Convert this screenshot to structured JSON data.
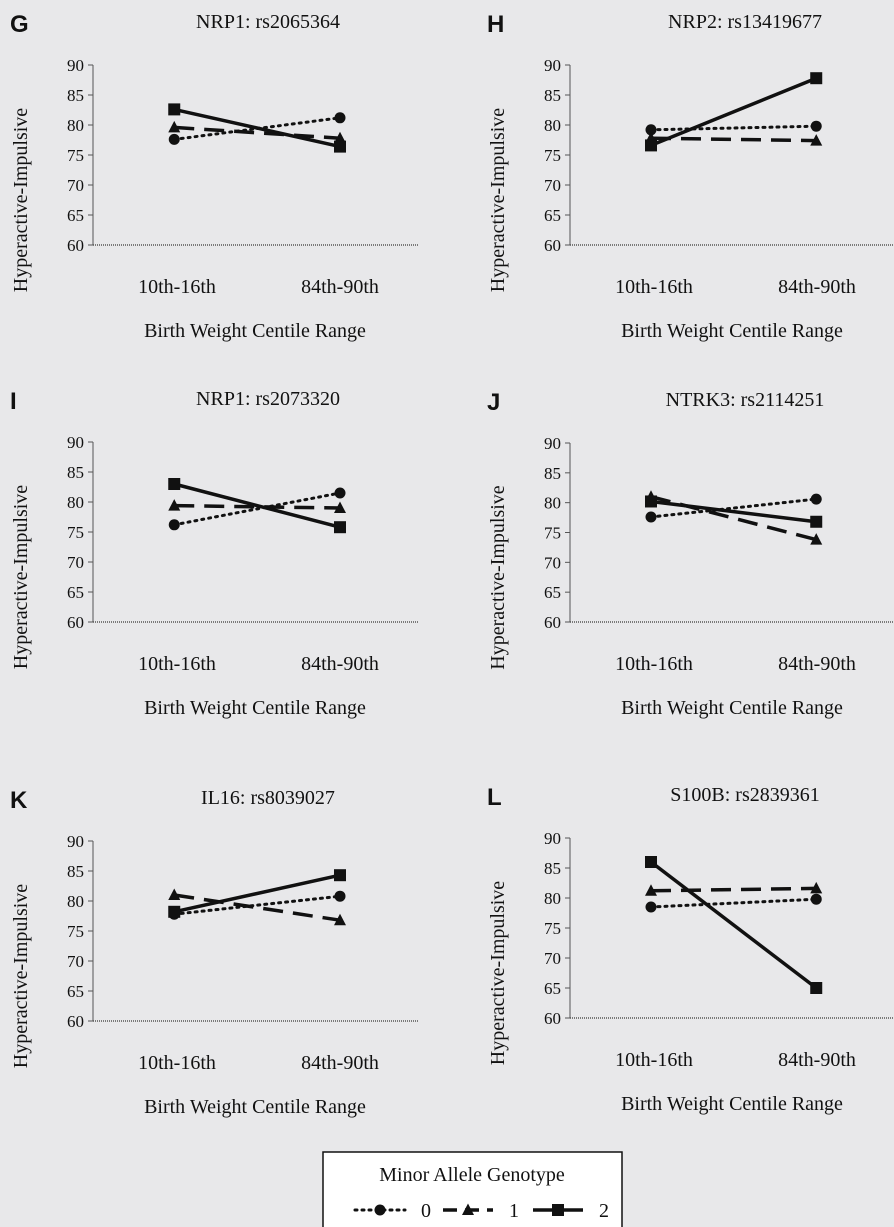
{
  "legend": {
    "title": "Minor Allele Genotype",
    "labels": [
      "0",
      "1",
      "2"
    ]
  },
  "chart_data": [
    {
      "type": "line",
      "panel": "G",
      "title": "NRP1: rs2065364",
      "ylabel": "Hyperactive-Impulsive",
      "xlabel": "Birth Weight Centile Range",
      "categories": [
        "10th-16th",
        "84th-90th"
      ],
      "ylim": [
        60,
        90
      ],
      "yticks": [
        60,
        65,
        70,
        75,
        80,
        85,
        90
      ],
      "series": [
        {
          "name": "0",
          "values": [
            77.6,
            81.2
          ]
        },
        {
          "name": "1",
          "values": [
            79.6,
            77.8
          ]
        },
        {
          "name": "2",
          "values": [
            82.6,
            76.4
          ]
        }
      ]
    },
    {
      "type": "line",
      "panel": "H",
      "title": "NRP2: rs13419677",
      "ylabel": "Hyperactive-Impulsive",
      "xlabel": "Birth Weight Centile Range",
      "categories": [
        "10th-16th",
        "84th-90th"
      ],
      "ylim": [
        60,
        90
      ],
      "yticks": [
        60,
        65,
        70,
        75,
        80,
        85,
        90
      ],
      "series": [
        {
          "name": "0",
          "values": [
            79.2,
            79.8
          ]
        },
        {
          "name": "1",
          "values": [
            77.8,
            77.4
          ]
        },
        {
          "name": "2",
          "values": [
            76.6,
            87.8
          ]
        }
      ]
    },
    {
      "type": "line",
      "panel": "I",
      "title": "NRP1: rs2073320",
      "ylabel": "Hyperactive-Impulsive",
      "xlabel": "Birth Weight Centile Range",
      "categories": [
        "10th-16th",
        "84th-90th"
      ],
      "ylim": [
        60,
        90
      ],
      "yticks": [
        60,
        65,
        70,
        75,
        80,
        85,
        90
      ],
      "series": [
        {
          "name": "0",
          "values": [
            76.2,
            81.5
          ]
        },
        {
          "name": "1",
          "values": [
            79.4,
            79.0
          ]
        },
        {
          "name": "2",
          "values": [
            83.0,
            75.8
          ]
        }
      ]
    },
    {
      "type": "line",
      "panel": "J",
      "title": "NTRK3: rs2114251",
      "ylabel": "Hyperactive-Impulsive",
      "xlabel": "Birth Weight Centile Range",
      "categories": [
        "10th-16th",
        "84th-90th"
      ],
      "ylim": [
        60,
        90
      ],
      "yticks": [
        60,
        65,
        70,
        75,
        80,
        85,
        90
      ],
      "series": [
        {
          "name": "0",
          "values": [
            77.6,
            80.6
          ]
        },
        {
          "name": "1",
          "values": [
            81.0,
            73.8
          ]
        },
        {
          "name": "2",
          "values": [
            80.2,
            76.8
          ]
        }
      ]
    },
    {
      "type": "line",
      "panel": "K",
      "title": "IL16: rs8039027",
      "ylabel": "Hyperactive-Impulsive",
      "xlabel": "Birth Weight Centile Range",
      "categories": [
        "10th-16th",
        "84th-90th"
      ],
      "ylim": [
        60,
        90
      ],
      "yticks": [
        60,
        65,
        70,
        75,
        80,
        85,
        90
      ],
      "series": [
        {
          "name": "0",
          "values": [
            77.8,
            80.8
          ]
        },
        {
          "name": "1",
          "values": [
            81.0,
            76.8
          ]
        },
        {
          "name": "2",
          "values": [
            78.2,
            84.3
          ]
        }
      ]
    },
    {
      "type": "line",
      "panel": "L",
      "title": "S100B: rs2839361",
      "ylabel": "Hyperactive-Impulsive",
      "xlabel": "Birth Weight Centile Range",
      "categories": [
        "10th-16th",
        "84th-90th"
      ],
      "ylim": [
        60,
        90
      ],
      "yticks": [
        60,
        65,
        70,
        75,
        80,
        85,
        90
      ],
      "series": [
        {
          "name": "0",
          "values": [
            78.5,
            79.8
          ]
        },
        {
          "name": "1",
          "values": [
            81.2,
            81.6
          ]
        },
        {
          "name": "2",
          "values": [
            86.0,
            65.0
          ]
        }
      ]
    }
  ]
}
